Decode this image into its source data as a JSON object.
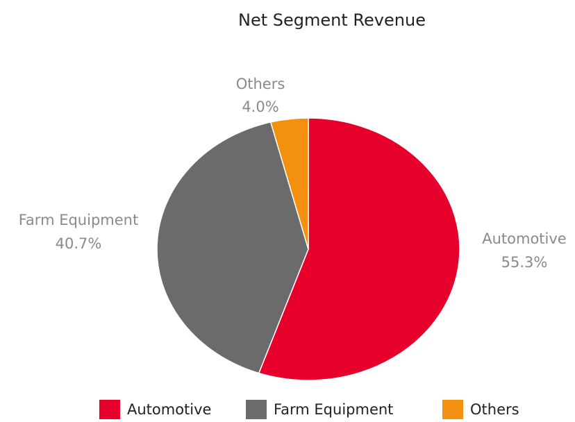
{
  "chart_data": {
    "type": "pie",
    "title": "Net Segment Revenue",
    "categories": [
      "Automotive",
      "Farm Equipment",
      "Others"
    ],
    "values": [
      55.3,
      40.7,
      4.0
    ],
    "value_labels": [
      "55.3%",
      "40.7%",
      "4.0%"
    ],
    "colors": [
      "#e8002d",
      "#6b6b6b",
      "#f39010"
    ],
    "legend": "bottom"
  }
}
